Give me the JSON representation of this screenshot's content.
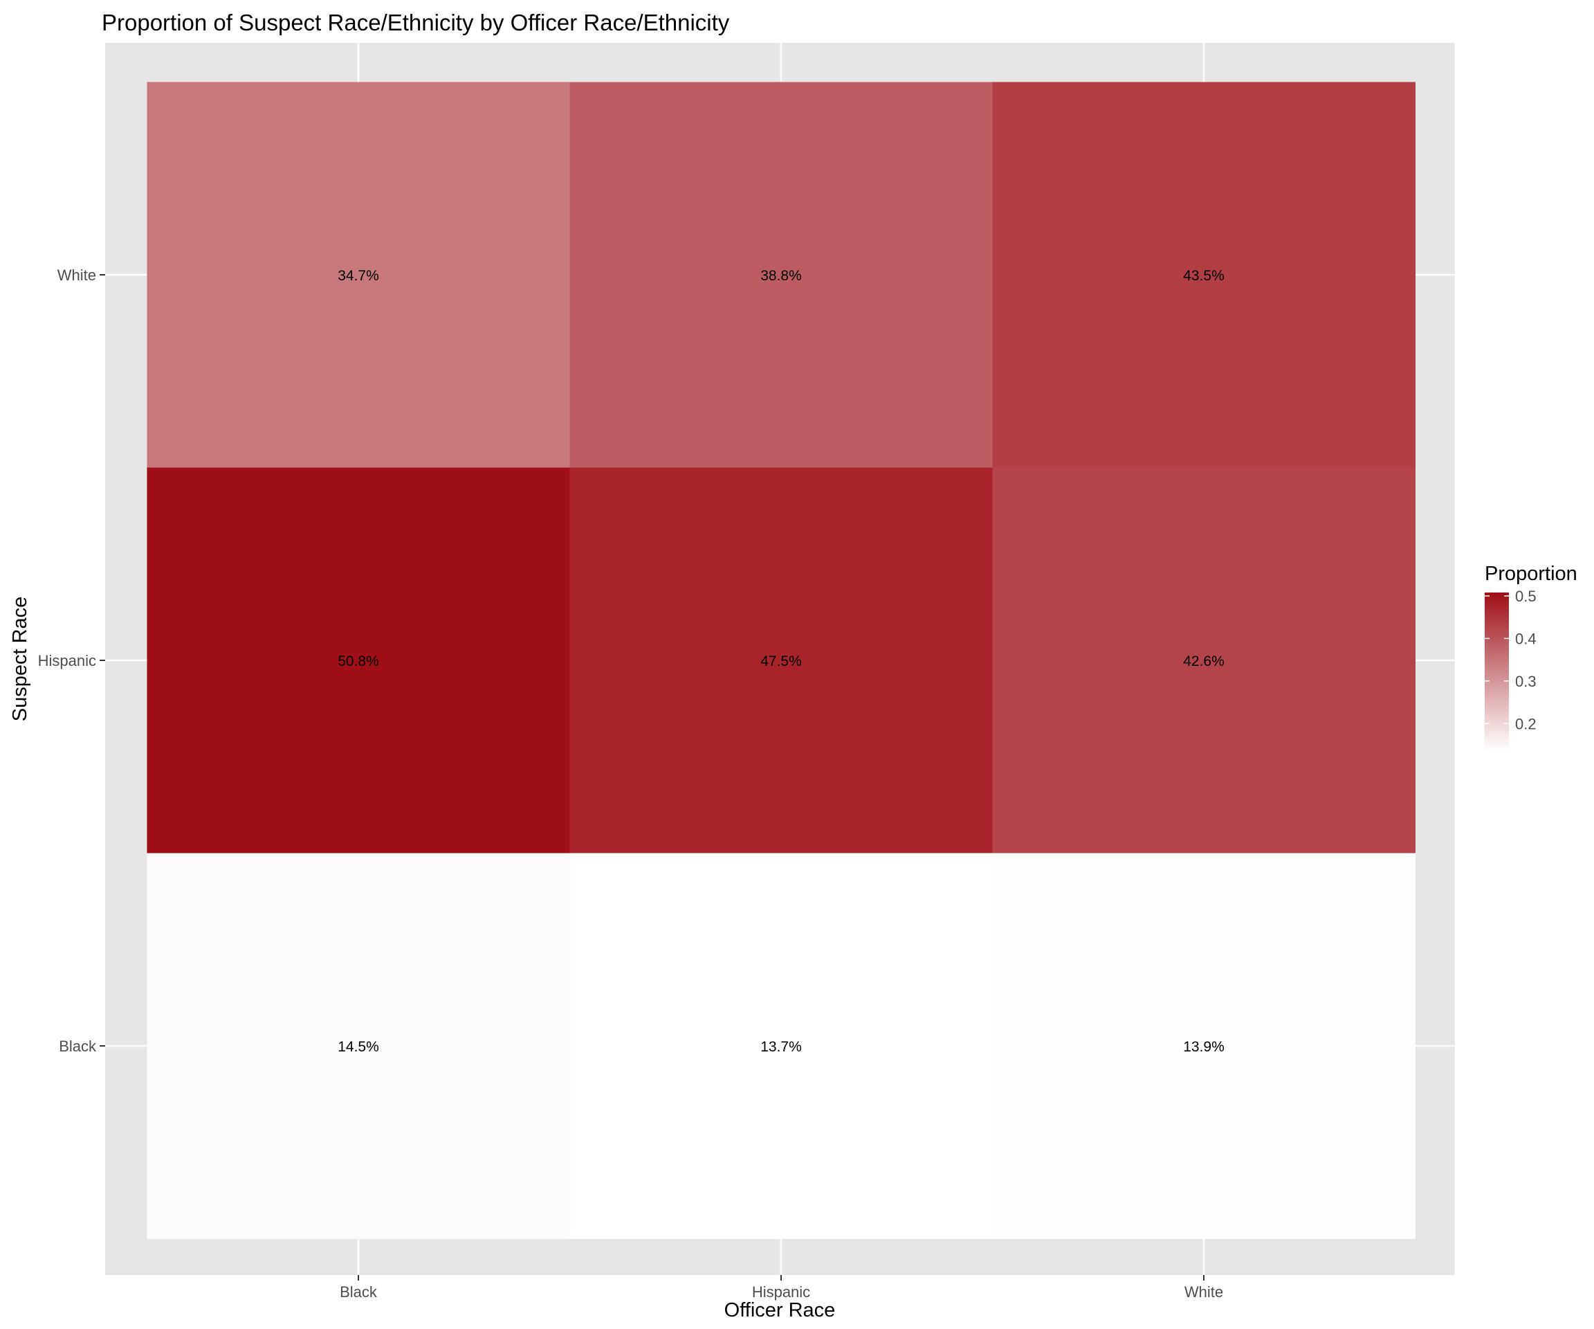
{
  "chart_data": {
    "type": "heatmap",
    "title": "Proportion of Suspect Race/Ethnicity by Officer Race/Ethnicity",
    "xlabel": "Officer Race",
    "ylabel": "Suspect Race",
    "x_categories": [
      "Black",
      "Hispanic",
      "White"
    ],
    "y_categories": [
      "Black",
      "Hispanic",
      "White"
    ],
    "cells": [
      {
        "officer": "Black",
        "suspect": "White",
        "value": 0.347,
        "label": "34.7%"
      },
      {
        "officer": "Hispanic",
        "suspect": "White",
        "value": 0.388,
        "label": "38.8%"
      },
      {
        "officer": "White",
        "suspect": "White",
        "value": 0.435,
        "label": "43.5%"
      },
      {
        "officer": "Black",
        "suspect": "Hispanic",
        "value": 0.508,
        "label": "50.8%"
      },
      {
        "officer": "Hispanic",
        "suspect": "Hispanic",
        "value": 0.475,
        "label": "47.5%"
      },
      {
        "officer": "White",
        "suspect": "Hispanic",
        "value": 0.426,
        "label": "42.6%"
      },
      {
        "officer": "Black",
        "suspect": "Black",
        "value": 0.145,
        "label": "14.5%"
      },
      {
        "officer": "Hispanic",
        "suspect": "Black",
        "value": 0.137,
        "label": "13.7%"
      },
      {
        "officer": "White",
        "suspect": "Black",
        "value": 0.139,
        "label": "13.9%"
      }
    ],
    "color_scale": {
      "low": "#ffffff",
      "high": "#9e0f18",
      "min": 0.137,
      "max": 0.508
    },
    "legend": {
      "title": "Proportion",
      "ticks": [
        0.2,
        0.3,
        0.4,
        0.5
      ],
      "tick_labels": [
        "0.2",
        "0.3",
        "0.4",
        "0.5"
      ],
      "placement": "right"
    },
    "grid": true,
    "panel_background": "#e6e6e6"
  }
}
